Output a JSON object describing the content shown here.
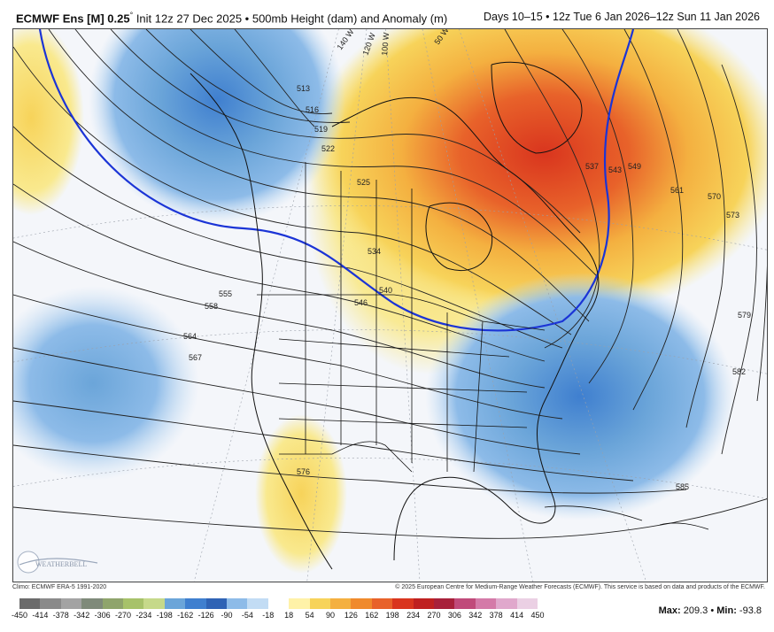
{
  "header": {
    "model": "ECMWF Ens [M] 0.25",
    "degree": "°",
    "init": "Init 12z 27 Dec 2025 • 500mb Height (dam) and Anomaly (m)",
    "valid": "Days 10–15 • 12z Tue 6 Jan 2026–12z Sun 11 Jan 2026"
  },
  "footer": {
    "climo": "Climo: ECMWF ERA-5 1991-2020",
    "copyright": "© 2025 European Centre for Medium-Range Weather Forecasts (ECMWF). This service is based on data and products of the ECMWF."
  },
  "stats": {
    "max_label": "Max",
    "max_value": "209.3",
    "min_label": "Min",
    "min_value": "-93.8"
  },
  "logo": {
    "text": "WEATHERBELL"
  },
  "map": {
    "contour_labels": [
      "513",
      "516",
      "519",
      "522",
      "525",
      "534",
      "540",
      "546",
      "537",
      "543",
      "549",
      "561",
      "570",
      "573",
      "579",
      "582",
      "585",
      "555",
      "558",
      "564",
      "567",
      "576"
    ],
    "meridian_labels": [
      "140 W",
      "120 W",
      "100 W",
      "50 W"
    ],
    "colors": {
      "strong_positive": "#d9351e",
      "positive": "#f08a2c",
      "weak_positive": "#f7d35a",
      "faint_positive": "#f9e98e",
      "negative": "#4a8fd8",
      "weak_negative": "#8cbbe8",
      "faint_negative": "#c2dcf4",
      "contour": "#222222",
      "highlight_contour": "#1b34d6"
    }
  },
  "colorbar": {
    "ticks": [
      "-450",
      "-414",
      "-378",
      "-342",
      "-306",
      "-270",
      "-234",
      "-198",
      "-162",
      "-126",
      "-90",
      "-54",
      "-18",
      "18",
      "54",
      "90",
      "126",
      "162",
      "198",
      "234",
      "270",
      "306",
      "342",
      "378",
      "414",
      "450"
    ],
    "colors": [
      "#6b6b6b",
      "#8a8a8a",
      "#a3a3a3",
      "#7f8a7a",
      "#8fa46c",
      "#a7c26a",
      "#c6d98a",
      "#6ba5d9",
      "#3f7fcf",
      "#2f63b5",
      "#8dbbe8",
      "#c2dcf4",
      "#ffffff",
      "#fff2a8",
      "#f7d35a",
      "#f4b040",
      "#f08a2c",
      "#e8622a",
      "#d9351e",
      "#bf2020",
      "#a8203a",
      "#c04a7a",
      "#d47aa8",
      "#e0a8cc",
      "#ebd0e4"
    ]
  }
}
